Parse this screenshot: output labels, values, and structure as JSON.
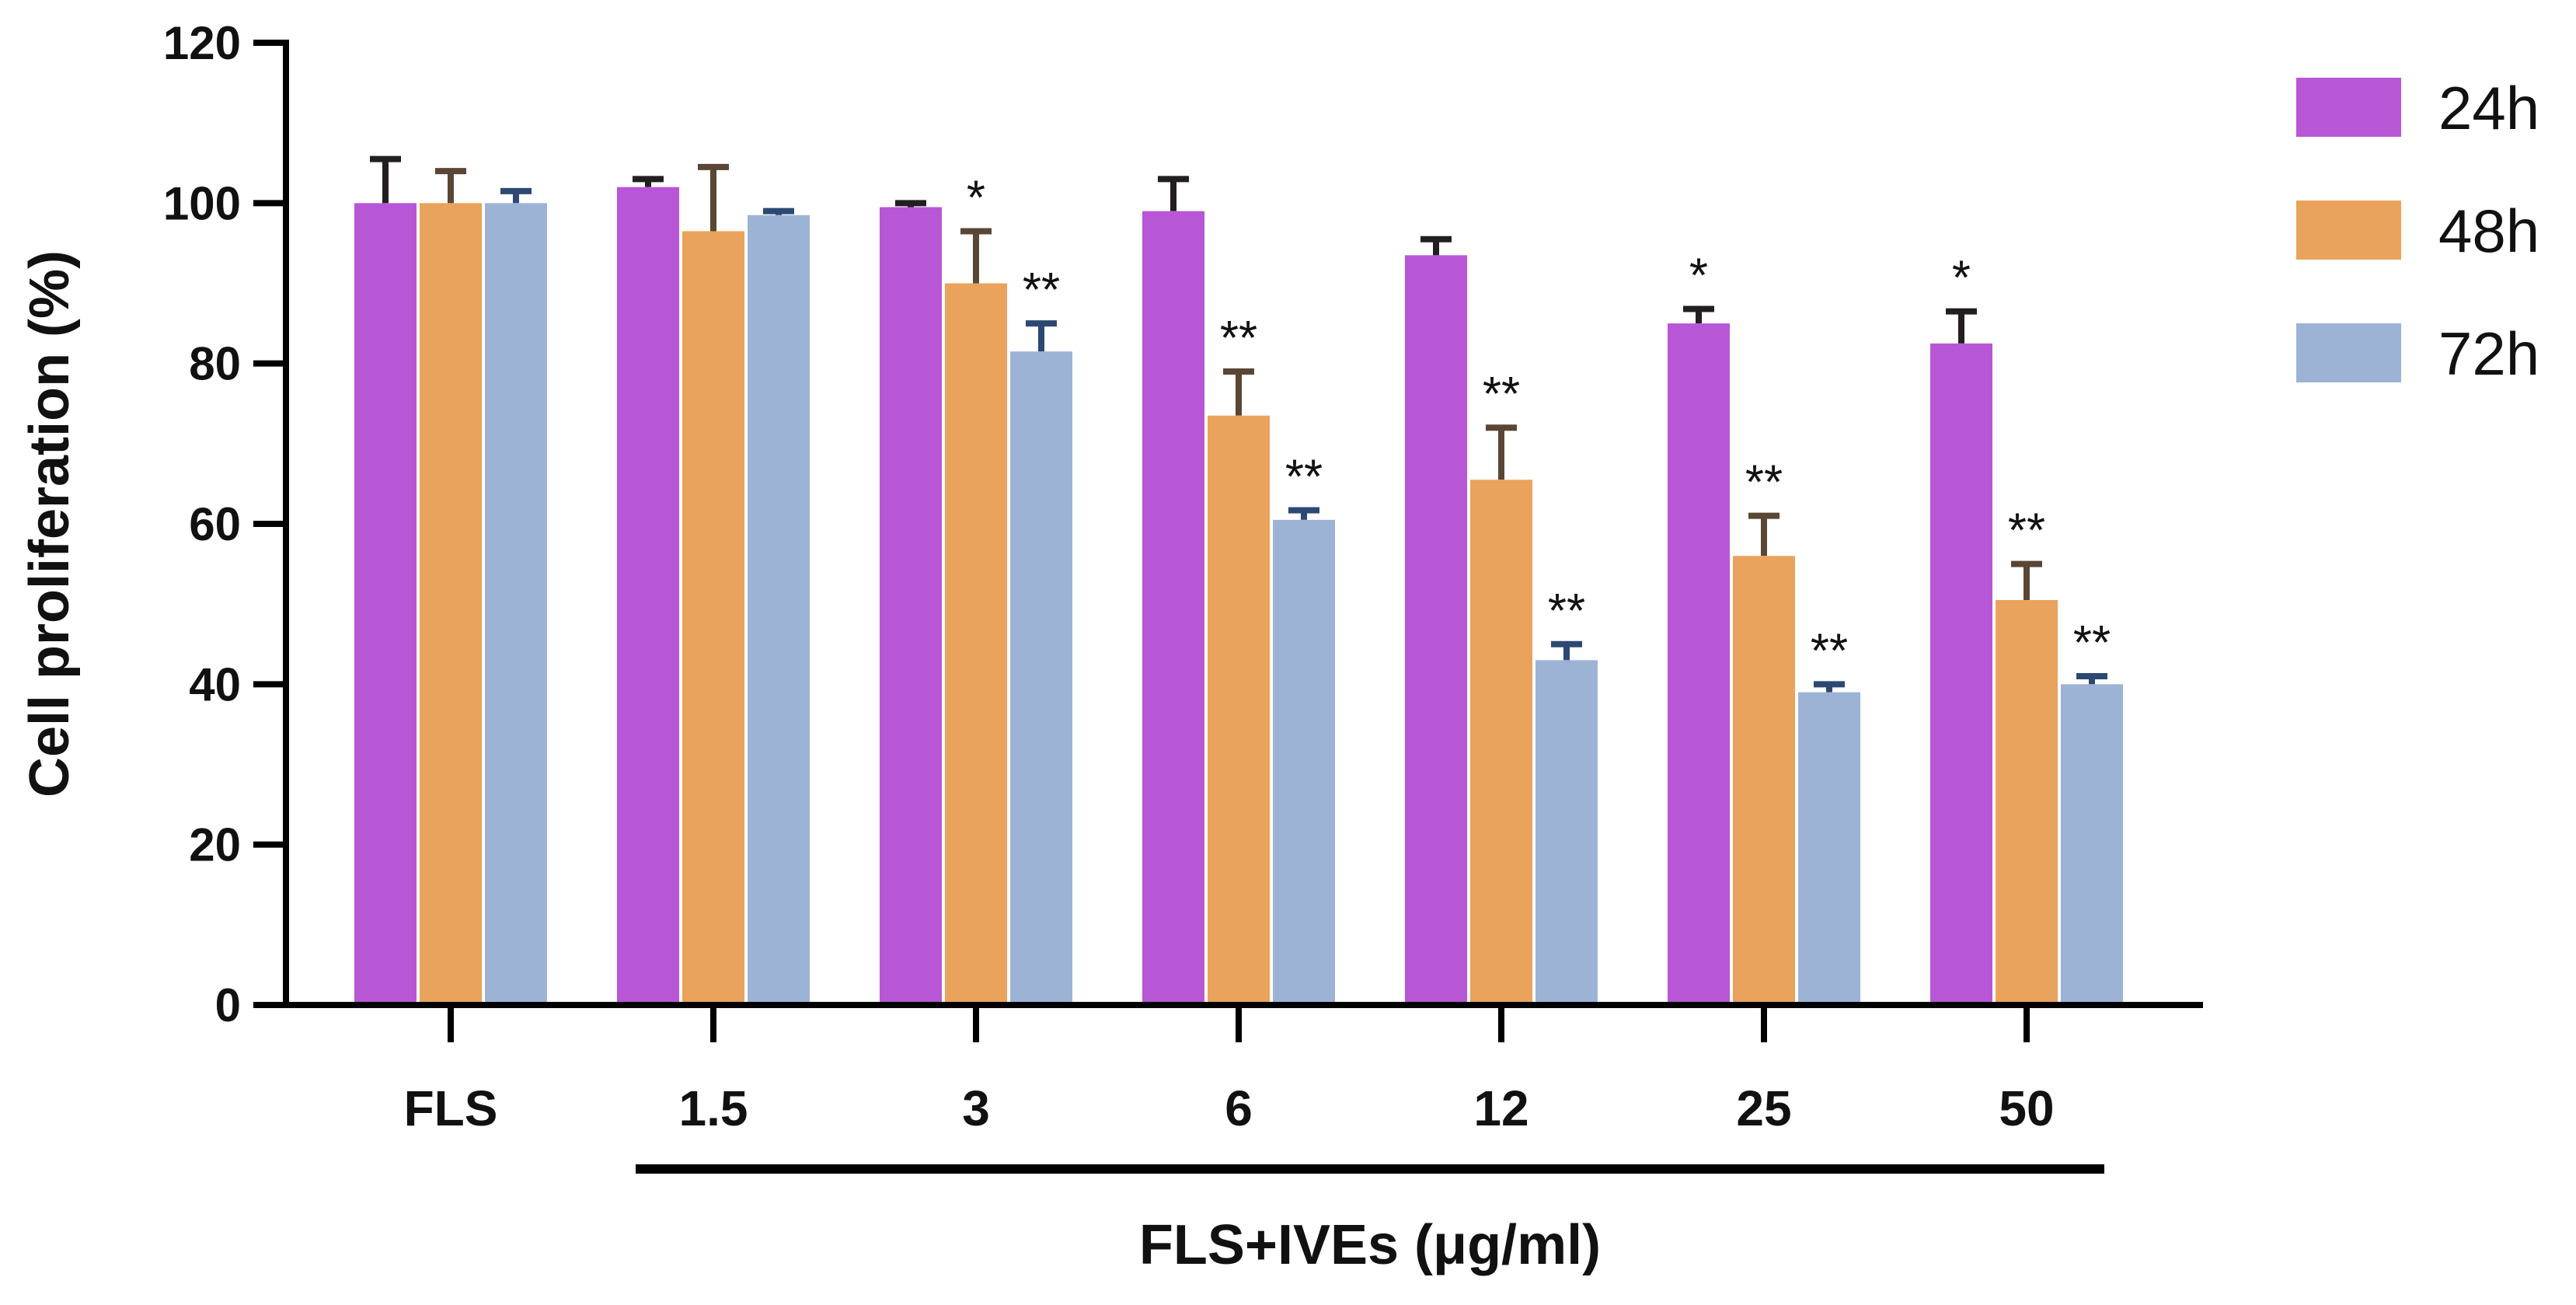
{
  "chart_data": {
    "type": "bar",
    "title": "",
    "xlabel": "FLS+IVEs (μg/ml)",
    "ylabel": "Cell proliferation (%)",
    "ylim": [
      0,
      120
    ],
    "yticks": [
      0,
      20,
      40,
      60,
      80,
      100,
      120
    ],
    "categories": [
      "FLS",
      "1.5",
      "3",
      "6",
      "12",
      "25",
      "50"
    ],
    "series": [
      {
        "name": "24h",
        "color": "#b857d6",
        "values": [
          100,
          102,
          99.5,
          99,
          93.5,
          85,
          82.5
        ],
        "errors": [
          5.5,
          1,
          0.5,
          4,
          2,
          1.8,
          4
        ],
        "significance": [
          "",
          "",
          "",
          "",
          "",
          "*",
          "*"
        ]
      },
      {
        "name": "48h",
        "color": "#e9a35c",
        "values": [
          100,
          96.5,
          90,
          73.5,
          65.5,
          56,
          50.5
        ],
        "errors": [
          4,
          8,
          6.5,
          5.5,
          6.5,
          5,
          4.5
        ],
        "significance": [
          "",
          "",
          "*",
          "**",
          "**",
          "**",
          "**"
        ]
      },
      {
        "name": "72h",
        "color": "#9db3d6",
        "values": [
          100,
          98.5,
          81.5,
          60.5,
          43,
          39,
          40
        ],
        "errors": [
          1.5,
          0.5,
          3.5,
          1.2,
          2,
          1,
          1
        ],
        "significance": [
          "",
          "",
          "**",
          "**",
          "**",
          "**",
          "**"
        ]
      }
    ],
    "error_bar_colors": {
      "24h": "#231f20",
      "48h": "#5a4634",
      "72h": "#2c4873"
    },
    "group_bracket": {
      "from_category": "1.5",
      "to_category": "50",
      "label": "FLS+IVEs (μg/ml)"
    },
    "legend_position": "right"
  }
}
